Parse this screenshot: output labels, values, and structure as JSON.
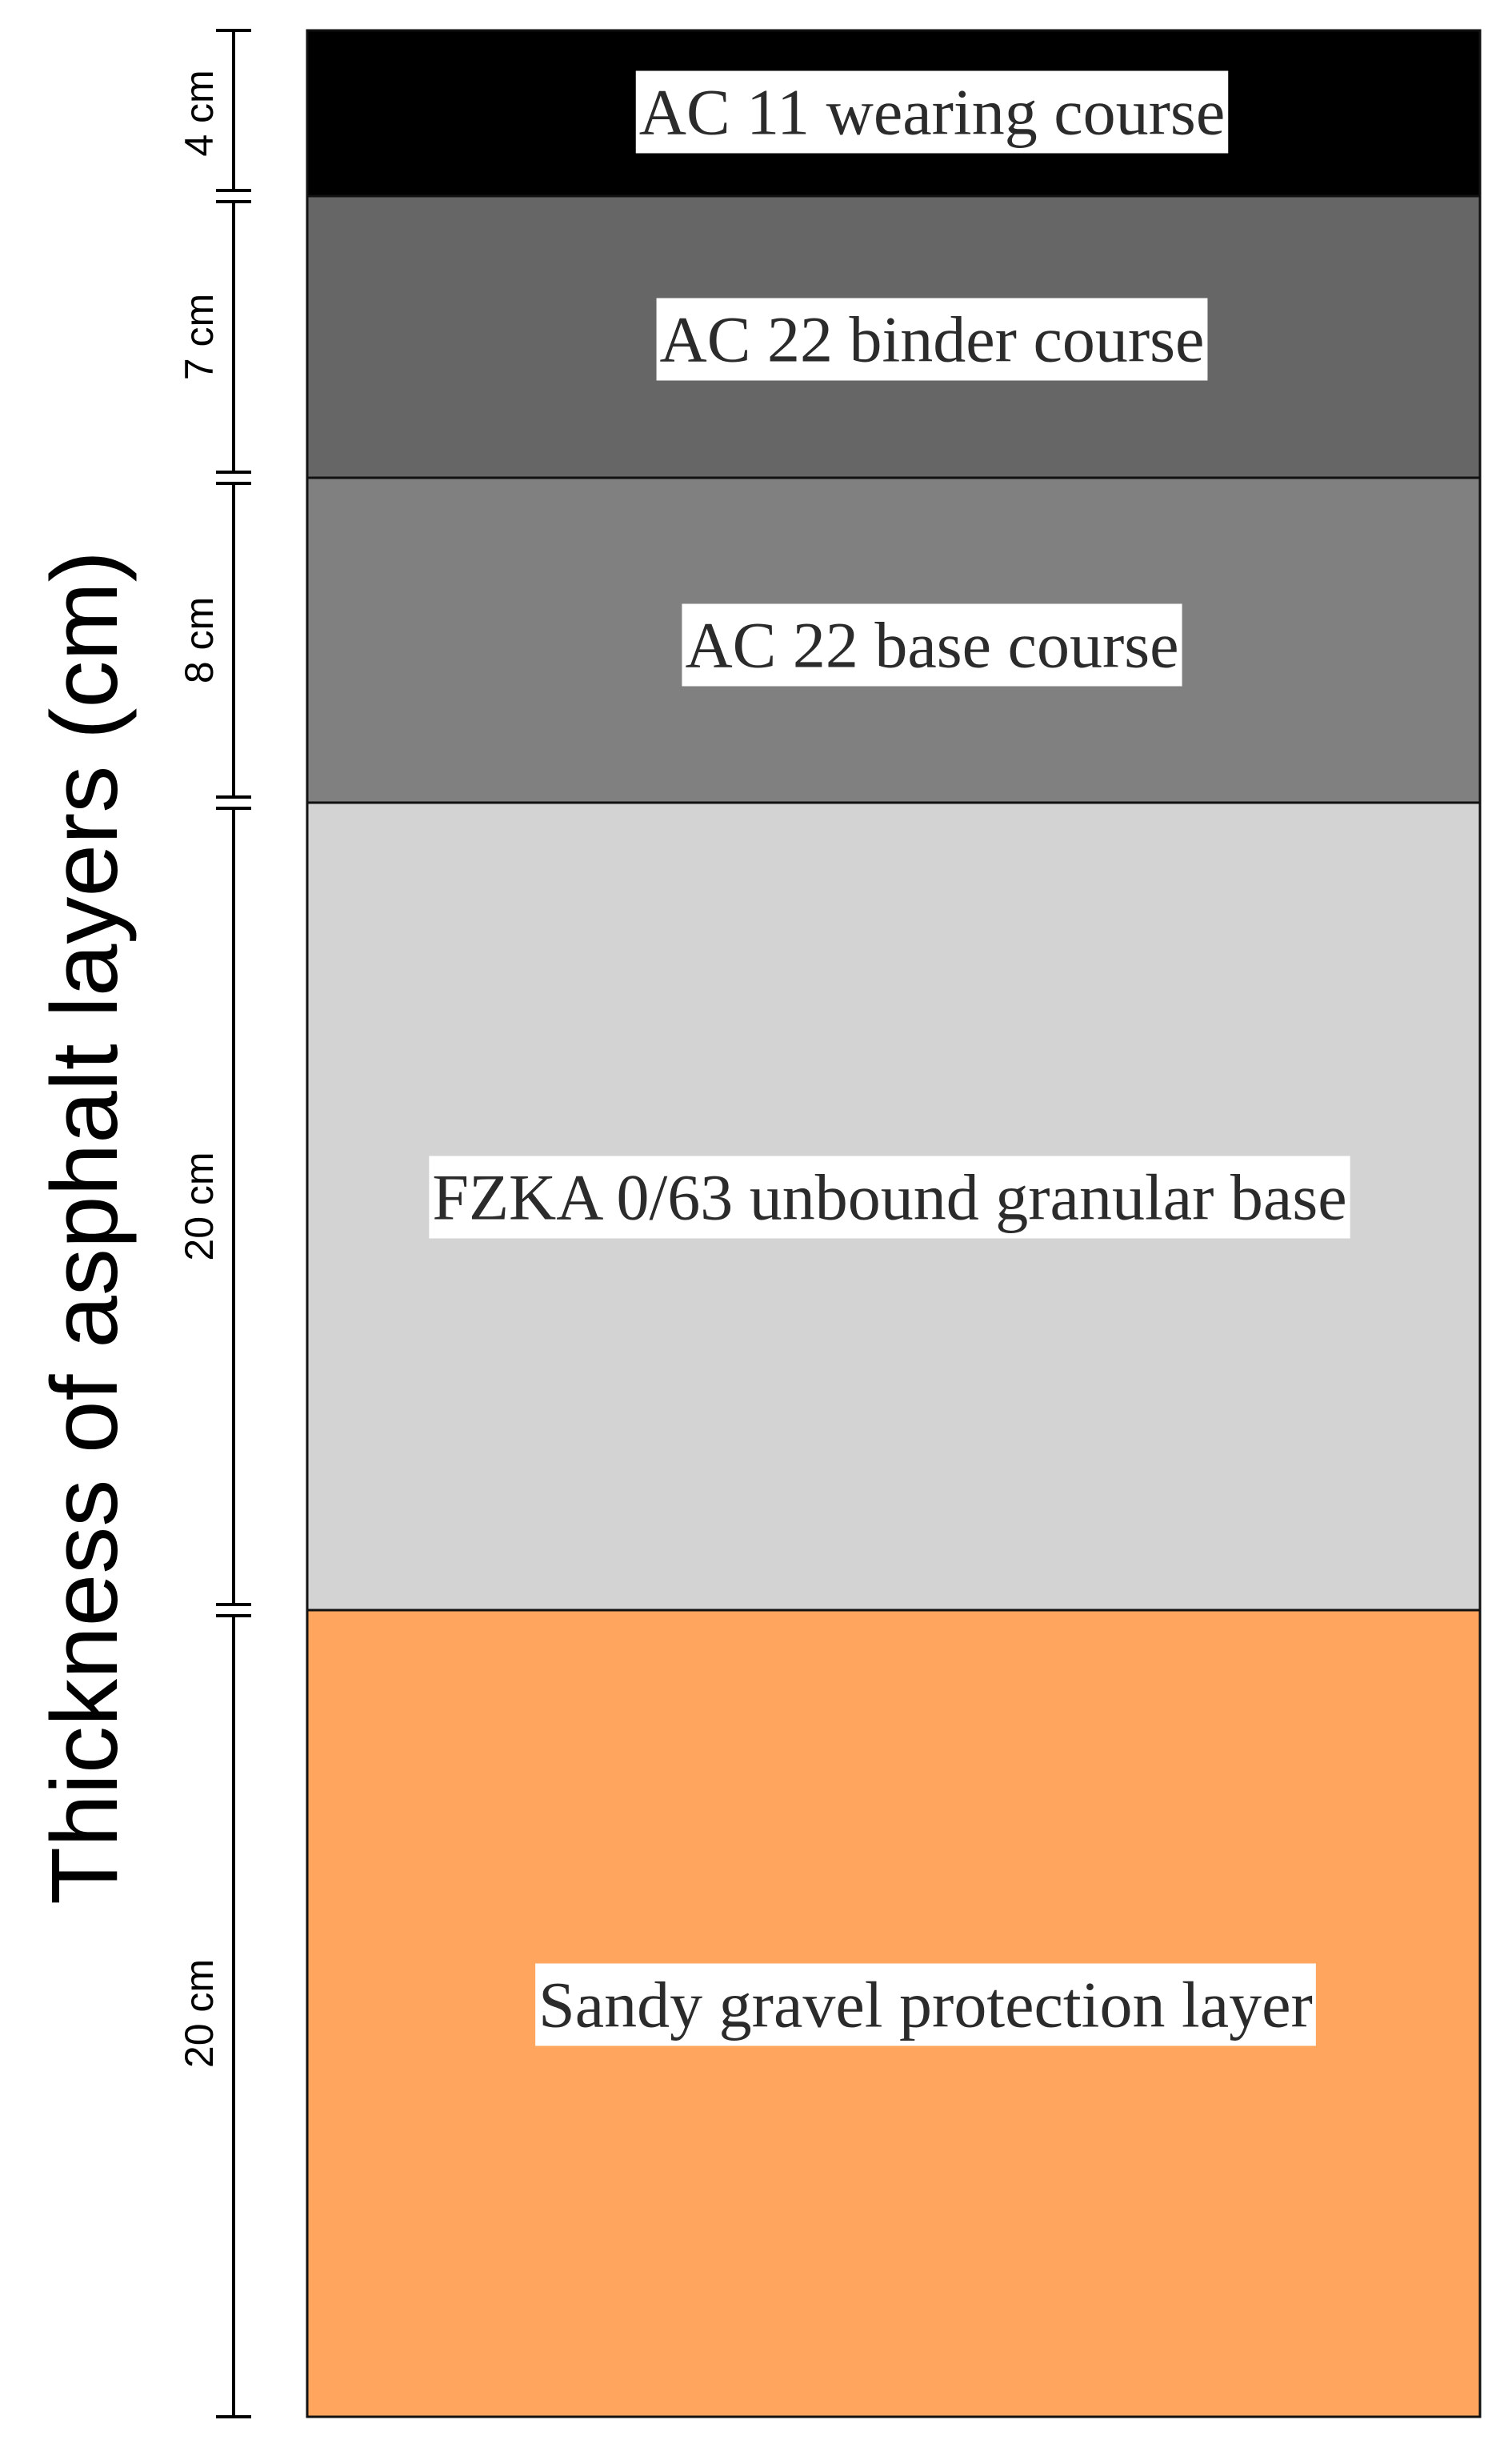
{
  "title": "Thickness of asphalt layers (cm)",
  "layers": [
    {
      "name": "AC 11 wearing course",
      "thickness_label": "4 cm",
      "color": "#000000"
    },
    {
      "name": "AC 22 binder course",
      "thickness_label": "7 cm",
      "color": "#666666"
    },
    {
      "name": "AC 22 base course",
      "thickness_label": "8 cm",
      "color": "#808080"
    },
    {
      "name": "FZKA 0/63 unbound granular base",
      "thickness_label": "20 cm",
      "color": "#d3d3d3"
    },
    {
      "name": "Sandy gravel protection layer",
      "thickness_label": "20 cm",
      "color": "#ffa55e"
    }
  ]
}
